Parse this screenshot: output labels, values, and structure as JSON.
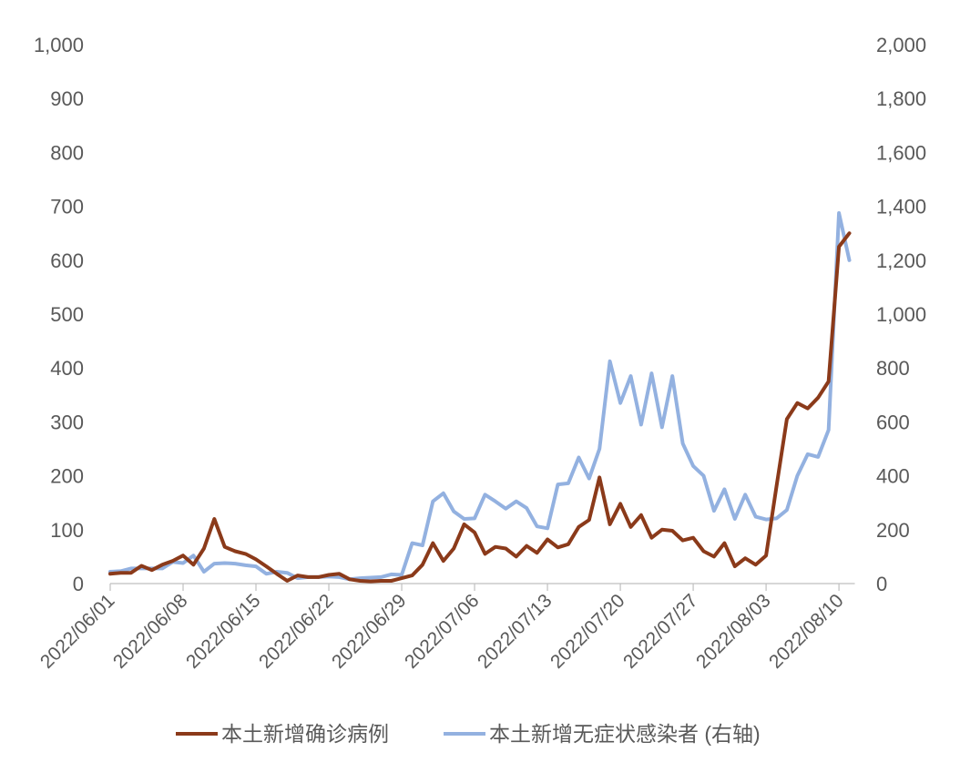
{
  "chart_data": {
    "type": "line",
    "title": "",
    "xlabel": "",
    "ylabel": "",
    "y2label": "",
    "grid": false,
    "legend_position": "bottom",
    "x_tick_labels": [
      "2022/06/01",
      "2022/06/08",
      "2022/06/15",
      "2022/06/22",
      "2022/06/29",
      "2022/07/06",
      "2022/07/13",
      "2022/07/20",
      "2022/07/27",
      "2022/08/03",
      "2022/08/10"
    ],
    "y_left": {
      "range": [
        0,
        1000
      ],
      "tick_labels": [
        "0",
        "100",
        "200",
        "300",
        "400",
        "500",
        "600",
        "700",
        "800",
        "900",
        "1,000"
      ]
    },
    "y_right": {
      "range": [
        0,
        2000
      ],
      "tick_labels": [
        "0",
        "200",
        "400",
        "600",
        "800",
        "1,000",
        "1,200",
        "1,400",
        "1,600",
        "1,800",
        "2,000"
      ]
    },
    "x": [
      "2022/06/01",
      "2022/06/02",
      "2022/06/03",
      "2022/06/04",
      "2022/06/05",
      "2022/06/06",
      "2022/06/07",
      "2022/06/08",
      "2022/06/09",
      "2022/06/10",
      "2022/06/11",
      "2022/06/12",
      "2022/06/13",
      "2022/06/14",
      "2022/06/15",
      "2022/06/16",
      "2022/06/17",
      "2022/06/18",
      "2022/06/19",
      "2022/06/20",
      "2022/06/21",
      "2022/06/22",
      "2022/06/23",
      "2022/06/24",
      "2022/06/25",
      "2022/06/26",
      "2022/06/27",
      "2022/06/28",
      "2022/06/29",
      "2022/06/30",
      "2022/07/01",
      "2022/07/02",
      "2022/07/03",
      "2022/07/04",
      "2022/07/05",
      "2022/07/06",
      "2022/07/07",
      "2022/07/08",
      "2022/07/09",
      "2022/07/10",
      "2022/07/11",
      "2022/07/12",
      "2022/07/13",
      "2022/07/14",
      "2022/07/15",
      "2022/07/16",
      "2022/07/17",
      "2022/07/18",
      "2022/07/19",
      "2022/07/20",
      "2022/07/21",
      "2022/07/22",
      "2022/07/23",
      "2022/07/24",
      "2022/07/25",
      "2022/07/26",
      "2022/07/27",
      "2022/07/28",
      "2022/07/29",
      "2022/07/30",
      "2022/07/31",
      "2022/08/01",
      "2022/08/02",
      "2022/08/03",
      "2022/08/04",
      "2022/08/05",
      "2022/08/06",
      "2022/08/07",
      "2022/08/08",
      "2022/08/09",
      "2022/08/10",
      "2022/08/11"
    ],
    "series": [
      {
        "name": "本土新增确诊病例",
        "axis": "left",
        "color": "#8B3A1A",
        "values": [
          18,
          20,
          20,
          33,
          25,
          35,
          42,
          52,
          35,
          65,
          120,
          68,
          60,
          55,
          45,
          32,
          18,
          5,
          15,
          12,
          12,
          16,
          18,
          8,
          5,
          4,
          5,
          5,
          10,
          15,
          35,
          75,
          42,
          65,
          110,
          95,
          55,
          68,
          65,
          50,
          70,
          57,
          82,
          67,
          73,
          105,
          118,
          197,
          110,
          148,
          105,
          127,
          85,
          100,
          98,
          80,
          85,
          60,
          50,
          75,
          32,
          47,
          35,
          52,
          180,
          305,
          335,
          325,
          345,
          375,
          625,
          650
        ]
      },
      {
        "name": "本土新增无症状感染者 (右轴)",
        "axis": "right",
        "color": "#93B1E0",
        "values": [
          44,
          46,
          56,
          56,
          56,
          56,
          80,
          76,
          104,
          44,
          74,
          76,
          74,
          68,
          64,
          36,
          44,
          40,
          20,
          24,
          24,
          26,
          24,
          16,
          20,
          22,
          24,
          34,
          32,
          150,
          142,
          305,
          335,
          268,
          240,
          242,
          330,
          305,
          278,
          305,
          280,
          212,
          205,
          368,
          372,
          468,
          390,
          500,
          825,
          670,
          770,
          590,
          780,
          580,
          770,
          520,
          436,
          400,
          270,
          350,
          240,
          330,
          248,
          238,
          242,
          273,
          400,
          480,
          470,
          570,
          1375,
          1200
        ]
      }
    ]
  }
}
